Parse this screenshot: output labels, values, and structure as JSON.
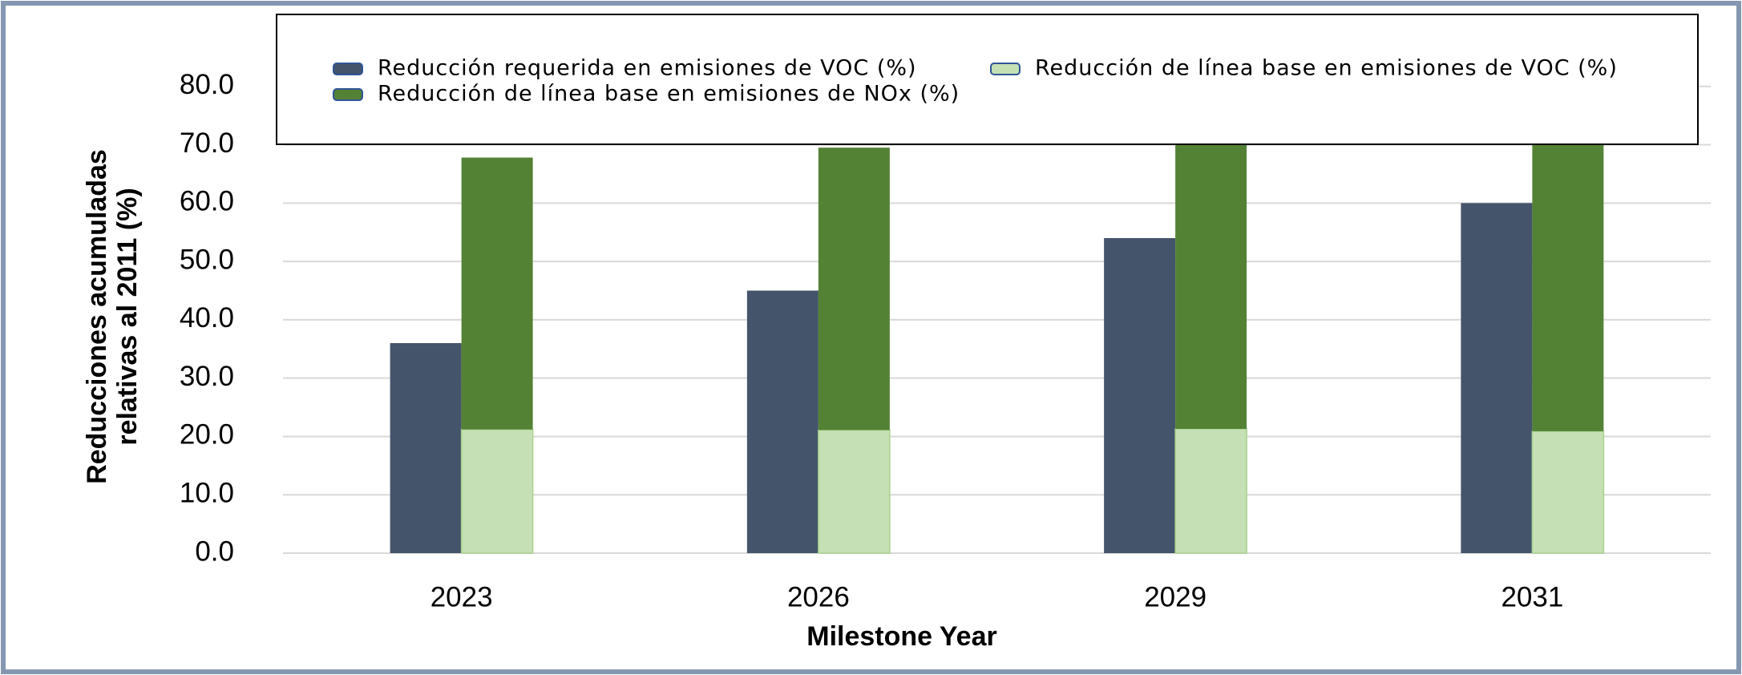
{
  "chart_data": {
    "type": "bar",
    "categories": [
      "2023",
      "2026",
      "2029",
      "2031"
    ],
    "series": [
      {
        "name": "Reducción requerida en emisiones de VOC (%)",
        "color": "#44546a",
        "values": [
          36,
          45,
          54,
          60
        ]
      },
      {
        "name": "Reducción de línea base en emisiones de VOC (%)",
        "color": "#c5e0b4",
        "stroke": "#a9d18e",
        "values": [
          21.2,
          21.1,
          21.3,
          20.9
        ]
      },
      {
        "name": "Reducción de línea base en emisiones de NOx (%)",
        "color": "#548235",
        "values": [
          46.6,
          48.4,
          50.2,
          51.1
        ]
      }
    ],
    "x_label": "Milestone Year",
    "y_label": [
      "Reducciones acumuladas",
      "relativas al 2011 (%)"
    ],
    "ylim": [
      0,
      90
    ],
    "yticks": [
      {
        "value": 0,
        "label": "0.0"
      },
      {
        "value": 10,
        "label": "10.0"
      },
      {
        "value": 20,
        "label": "20.0"
      },
      {
        "value": 30,
        "label": "30.0"
      },
      {
        "value": 40,
        "label": "40.0"
      },
      {
        "value": 50,
        "label": "50.0"
      },
      {
        "value": 60,
        "label": "60.0"
      },
      {
        "value": 70,
        "label": "70.0"
      },
      {
        "value": 80,
        "label": "80.0"
      }
    ],
    "grid": true
  }
}
